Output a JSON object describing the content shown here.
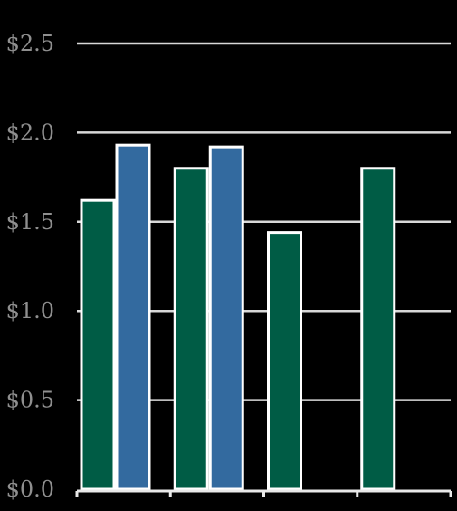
{
  "chart_data": {
    "type": "bar",
    "title": "",
    "xlabel": "",
    "ylabel": "",
    "categories": [
      "",
      "",
      "",
      ""
    ],
    "series": [
      {
        "values": [
          1.62,
          1.8,
          1.44,
          1.8
        ]
      },
      {
        "values": [
          1.93,
          1.92,
          null,
          null
        ]
      }
    ],
    "ylim": [
      0,
      2.5
    ],
    "yticks": [
      0.0,
      0.5,
      1.0,
      1.5,
      2.0,
      2.5
    ],
    "ytick_labels": [
      "$0.0",
      "$0.5",
      "$1.0",
      "$1.5",
      "$2.0",
      "$2.5"
    ],
    "grid": true,
    "legend": "none"
  },
  "colors": {
    "background": "#000000",
    "series_1": "#005c45",
    "series_2": "#336a9f",
    "bar_outline": "#ffffff",
    "grid": "#d8d8d8",
    "tick_label": "#8f8f8f"
  }
}
